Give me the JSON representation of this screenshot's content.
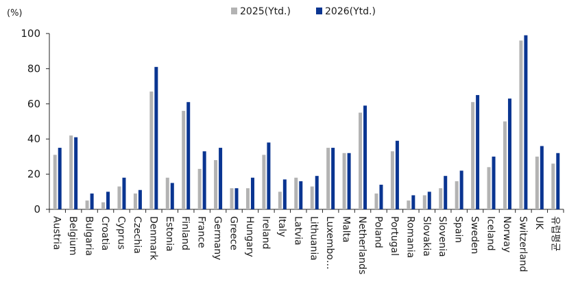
{
  "chart_data": {
    "type": "bar",
    "unit_label": "(%)",
    "categories": [
      "Austria",
      "Belgium",
      "Bulgaria",
      "Croatia",
      "Cyprus",
      "Czechia",
      "Denmark",
      "Estonia",
      "Finland",
      "France",
      "Germany",
      "Greece",
      "Hungary",
      "Ireland",
      "Italy",
      "Latvia",
      "Lithuania",
      "Luxembo…",
      "Malta",
      "Netherlands",
      "Poland",
      "Portugal",
      "Romania",
      "Slovakia",
      "Slovenia",
      "Spain",
      "Sweden",
      "Iceland",
      "Norway",
      "Switzerland",
      "UK",
      "유럽평균"
    ],
    "series": [
      {
        "name": "2025(Ytd.)",
        "color": "#b3b3b3",
        "values": [
          31,
          42,
          5,
          4,
          13,
          9,
          67,
          18,
          56,
          23,
          28,
          12,
          12,
          31,
          10,
          18,
          13,
          35,
          32,
          55,
          9,
          33,
          5,
          8,
          12,
          16,
          61,
          24,
          50,
          96,
          30,
          26
        ]
      },
      {
        "name": "2026(Ytd.)",
        "color": "#0a3591",
        "values": [
          35,
          41,
          9,
          10,
          18,
          11,
          81,
          15,
          61,
          33,
          35,
          12,
          18,
          38,
          17,
          16,
          19,
          35,
          32,
          59,
          14,
          39,
          8,
          10,
          19,
          22,
          65,
          30,
          63,
          99,
          36,
          32
        ]
      }
    ],
    "ylim": [
      0,
      100
    ],
    "yticks": [
      0,
      20,
      40,
      60,
      80,
      100
    ],
    "grid": false,
    "legend_position": "top-center"
  }
}
